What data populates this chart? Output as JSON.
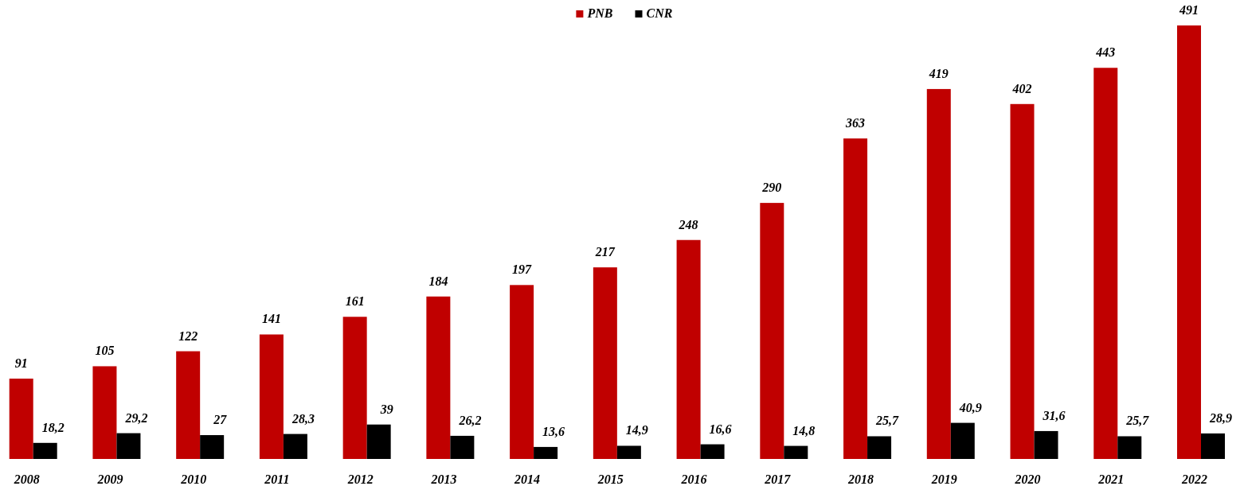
{
  "chart_data": {
    "type": "bar",
    "categories": [
      "2008",
      "2009",
      "2010",
      "2011",
      "2012",
      "2013",
      "2014",
      "2015",
      "2016",
      "2017",
      "2018",
      "2019",
      "2020",
      "2021",
      "2022"
    ],
    "series": [
      {
        "name": "PNB",
        "color": "#c00000",
        "values": [
          91,
          105,
          122,
          141,
          161,
          184,
          197,
          217,
          248,
          290,
          363,
          419,
          402,
          443,
          491
        ],
        "value_labels": [
          "91",
          "105",
          "122",
          "141",
          "161",
          "184",
          "197",
          "217",
          "248",
          "290",
          "363",
          "419",
          "402",
          "443",
          "491"
        ]
      },
      {
        "name": "CNR",
        "color": "#000000",
        "values": [
          18.2,
          29.2,
          27,
          28.3,
          39,
          26.2,
          13.6,
          14.9,
          16.6,
          14.8,
          25.7,
          40.9,
          31.6,
          25.7,
          28.9
        ],
        "value_labels": [
          "18,2",
          "29,2",
          "27",
          "28,3",
          "39",
          "26,2",
          "13,6",
          "14,9",
          "16,6",
          "14,8",
          "25,7",
          "40,9",
          "31,6",
          "25,7",
          "28,9"
        ]
      }
    ],
    "legend": "top",
    "tick_labels": "x"
  }
}
